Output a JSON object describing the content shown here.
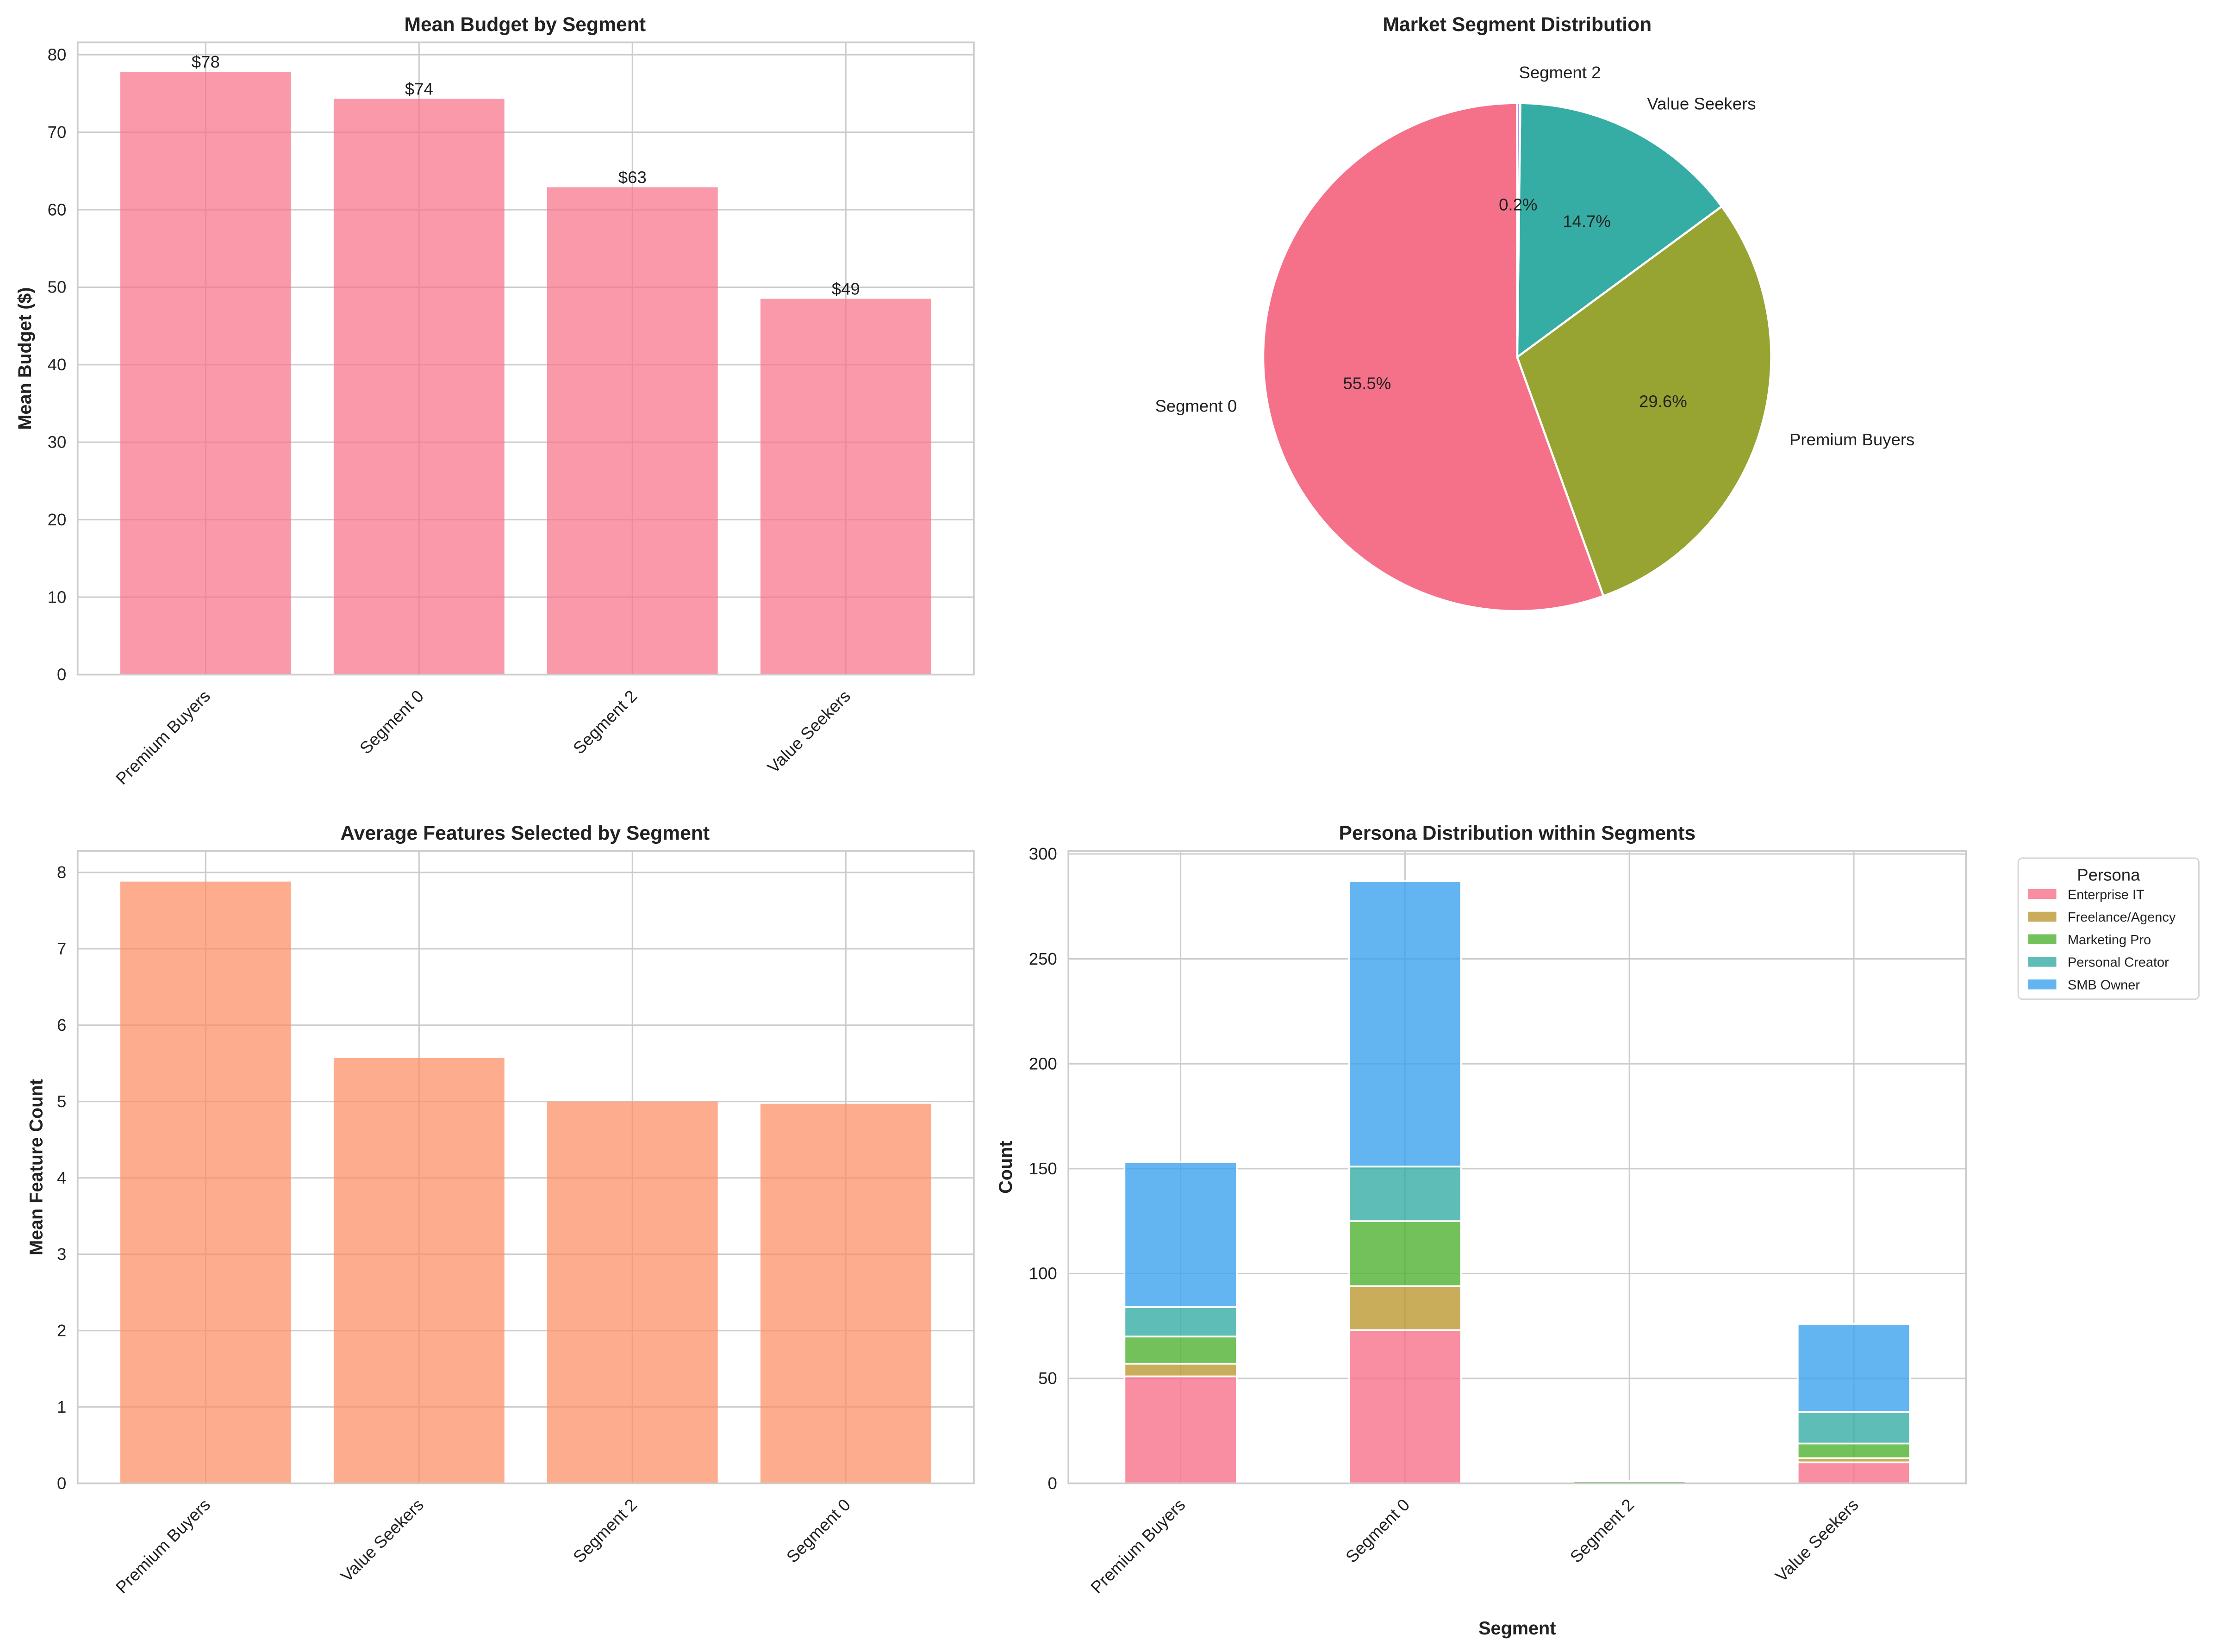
{
  "chart_data": [
    {
      "type": "bar",
      "title": "Mean Budget by Segment",
      "xlabel": "",
      "ylabel": "Mean Budget ($)",
      "categories": [
        "Premium Buyers",
        "Segment 0",
        "Segment 2",
        "Value Seekers"
      ],
      "values": [
        77.8,
        74.3,
        62.9,
        48.5
      ],
      "data_labels": [
        "$78",
        "$74",
        "$63",
        "$49"
      ],
      "ylim": [
        0,
        81.6
      ],
      "yticks": [
        0,
        10,
        20,
        30,
        40,
        50,
        60,
        70,
        80
      ],
      "color": "#f77189",
      "grid": true
    },
    {
      "type": "pie",
      "title": "Market Segment Distribution",
      "labels": [
        "Segment 0",
        "Premium Buyers",
        "Value Seekers",
        "Segment 2"
      ],
      "values": [
        287,
        153,
        76,
        1
      ],
      "pct_labels": [
        "55.5%",
        "29.6%",
        "14.7%",
        "0.2%"
      ],
      "colors": [
        "#f5718a",
        "#97a431",
        "#36ada4",
        "#a48cf4"
      ],
      "start_angle": 90
    },
    {
      "type": "bar",
      "title": "Average Features Selected by Segment",
      "xlabel": "",
      "ylabel": "Mean Feature Count",
      "categories": [
        "Premium Buyers",
        "Value Seekers",
        "Segment 2",
        "Segment 0"
      ],
      "values": [
        7.88,
        5.57,
        5.0,
        4.97
      ],
      "ylim": [
        0,
        8.28
      ],
      "yticks": [
        0,
        1,
        2,
        3,
        4,
        5,
        6,
        7,
        8
      ],
      "color": "#fc8d62",
      "grid": true
    },
    {
      "type": "bar",
      "stacked": true,
      "title": "Persona Distribution within Segments",
      "xlabel": "Segment",
      "ylabel": "Count",
      "categories": [
        "Premium Buyers",
        "Segment 0",
        "Segment 2",
        "Value Seekers"
      ],
      "series": [
        {
          "name": "Enterprise IT",
          "values": [
            51,
            73,
            0,
            10
          ],
          "color": "#f77189"
        },
        {
          "name": "Freelance/Agency",
          "values": [
            6,
            21,
            0,
            2
          ],
          "color": "#bb9832"
        },
        {
          "name": "Marketing Pro",
          "values": [
            13,
            31,
            1,
            7
          ],
          "color": "#50b131"
        },
        {
          "name": "Personal Creator",
          "values": [
            14,
            26,
            0,
            15
          ],
          "color": "#36ada4"
        },
        {
          "name": "SMB Owner",
          "values": [
            69,
            136,
            0,
            42
          ],
          "color": "#3ba3ec"
        }
      ],
      "legend_title": "Persona",
      "legend_position": "outside-right",
      "ylim": [
        0,
        301.4
      ],
      "yticks": [
        0,
        50,
        100,
        150,
        200,
        250,
        300
      ],
      "grid": true
    }
  ]
}
